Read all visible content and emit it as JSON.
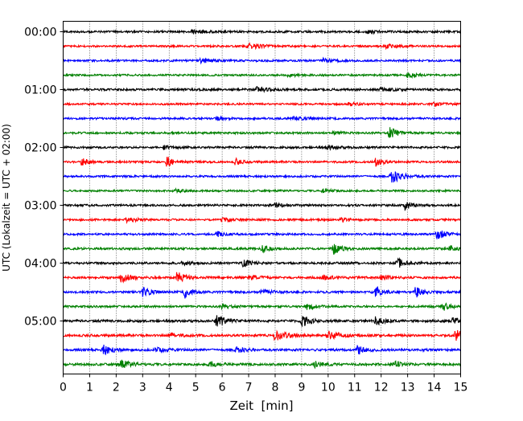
{
  "chart_data": {
    "type": "line",
    "title": "",
    "xlabel": "Zeit  [min]",
    "ylabel": "UTC (Lokalzeit = UTC + 02:00)",
    "xlim": [
      0,
      15
    ],
    "x_ticks": [
      0,
      1,
      2,
      3,
      4,
      5,
      6,
      7,
      8,
      9,
      10,
      11,
      12,
      13,
      14,
      15
    ],
    "x_tick_labels": [
      "0",
      "1",
      "2",
      "3",
      "4",
      "5",
      "6",
      "7",
      "8",
      "9",
      "10",
      "11",
      "12",
      "13",
      "14",
      "15"
    ],
    "trace_interval_minutes": 15,
    "trace_count": 24,
    "y_tick_labels": [
      "00:00",
      "01:00",
      "02:00",
      "03:00",
      "04:00",
      "05:00"
    ],
    "y_tick_trace_index": [
      0,
      4,
      8,
      12,
      16,
      20
    ],
    "grid": "vertical dotted lines at each minute",
    "colors": [
      "#000000",
      "#ff0000",
      "#0000ff",
      "#008000"
    ],
    "traces": [
      {
        "start": "00:00",
        "color": "#000000",
        "noise": 0.32,
        "events": [
          [
            4.9,
            0.6,
            0.4
          ],
          [
            11.5,
            0.5,
            0.3
          ]
        ]
      },
      {
        "start": "00:15",
        "color": "#ff0000",
        "noise": 0.28,
        "events": [
          [
            7.0,
            0.9,
            0.5
          ],
          [
            12.2,
            0.6,
            0.4
          ]
        ]
      },
      {
        "start": "00:30",
        "color": "#0000ff",
        "noise": 0.3,
        "events": [
          [
            5.2,
            0.6,
            0.4
          ],
          [
            9.8,
            0.6,
            0.3
          ]
        ]
      },
      {
        "start": "00:45",
        "color": "#008000",
        "noise": 0.28,
        "events": [
          [
            13.0,
            0.7,
            0.3
          ],
          [
            8.5,
            0.5,
            0.3
          ]
        ]
      },
      {
        "start": "01:00",
        "color": "#000000",
        "noise": 0.33,
        "events": [
          [
            7.3,
            0.7,
            0.4
          ],
          [
            12.0,
            0.6,
            0.4
          ]
        ]
      },
      {
        "start": "01:15",
        "color": "#ff0000",
        "noise": 0.28,
        "events": [
          [
            14.0,
            0.6,
            0.3
          ],
          [
            10.8,
            0.5,
            0.3
          ]
        ]
      },
      {
        "start": "01:30",
        "color": "#0000ff",
        "noise": 0.3,
        "events": [
          [
            5.8,
            0.5,
            0.3
          ],
          [
            8.7,
            0.6,
            0.3
          ]
        ]
      },
      {
        "start": "01:45",
        "color": "#008000",
        "noise": 0.3,
        "events": [
          [
            12.3,
            1.9,
            0.25
          ],
          [
            10.2,
            0.5,
            0.3
          ]
        ]
      },
      {
        "start": "02:00",
        "color": "#000000",
        "noise": 0.32,
        "events": [
          [
            10.0,
            0.6,
            0.3
          ],
          [
            3.8,
            0.5,
            0.3
          ]
        ]
      },
      {
        "start": "02:15",
        "color": "#ff0000",
        "noise": 0.3,
        "events": [
          [
            0.7,
            1.4,
            0.2
          ],
          [
            3.9,
            1.8,
            0.2
          ],
          [
            6.5,
            1.0,
            0.2
          ],
          [
            11.8,
            1.6,
            0.2
          ]
        ]
      },
      {
        "start": "02:30",
        "color": "#0000ff",
        "noise": 0.3,
        "events": [
          [
            12.4,
            1.9,
            0.4
          ]
        ]
      },
      {
        "start": "02:45",
        "color": "#008000",
        "noise": 0.28,
        "events": [
          [
            9.8,
            0.6,
            0.3
          ],
          [
            4.2,
            0.5,
            0.3
          ]
        ]
      },
      {
        "start": "03:00",
        "color": "#000000",
        "noise": 0.32,
        "events": [
          [
            12.9,
            1.2,
            0.25
          ],
          [
            8.0,
            0.6,
            0.3
          ]
        ]
      },
      {
        "start": "03:15",
        "color": "#ff0000",
        "noise": 0.3,
        "events": [
          [
            2.4,
            0.8,
            0.3
          ],
          [
            6.0,
            0.6,
            0.3
          ],
          [
            10.5,
            0.6,
            0.3
          ]
        ]
      },
      {
        "start": "03:30",
        "color": "#0000ff",
        "noise": 0.3,
        "events": [
          [
            14.1,
            2.0,
            0.25
          ],
          [
            5.8,
            0.8,
            0.25
          ]
        ]
      },
      {
        "start": "03:45",
        "color": "#008000",
        "noise": 0.32,
        "events": [
          [
            10.2,
            1.8,
            0.25
          ],
          [
            7.5,
            1.0,
            0.25
          ],
          [
            14.6,
            0.9,
            0.25
          ]
        ]
      },
      {
        "start": "04:00",
        "color": "#000000",
        "noise": 0.33,
        "events": [
          [
            6.8,
            1.2,
            0.25
          ],
          [
            12.6,
            1.6,
            0.25
          ],
          [
            4.5,
            0.7,
            0.3
          ]
        ]
      },
      {
        "start": "04:15",
        "color": "#ff0000",
        "noise": 0.33,
        "events": [
          [
            2.2,
            1.5,
            0.3
          ],
          [
            4.3,
            1.6,
            0.3
          ],
          [
            7.0,
            0.8,
            0.3
          ],
          [
            9.8,
            0.7,
            0.3
          ],
          [
            12.0,
            0.9,
            0.3
          ]
        ]
      },
      {
        "start": "04:30",
        "color": "#0000ff",
        "noise": 0.33,
        "events": [
          [
            3.0,
            1.6,
            0.25
          ],
          [
            4.6,
            1.7,
            0.25
          ],
          [
            11.8,
            2.1,
            0.2
          ],
          [
            13.3,
            1.7,
            0.25
          ],
          [
            7.5,
            0.8,
            0.3
          ]
        ]
      },
      {
        "start": "04:45",
        "color": "#008000",
        "noise": 0.32,
        "events": [
          [
            9.2,
            1.0,
            0.3
          ],
          [
            14.3,
            1.5,
            0.25
          ],
          [
            6.0,
            0.6,
            0.3
          ]
        ]
      },
      {
        "start": "05:00",
        "color": "#000000",
        "noise": 0.35,
        "events": [
          [
            5.8,
            1.9,
            0.3
          ],
          [
            9.0,
            1.8,
            0.3
          ],
          [
            11.8,
            1.3,
            0.25
          ],
          [
            14.7,
            1.0,
            0.25
          ]
        ]
      },
      {
        "start": "05:15",
        "color": "#ff0000",
        "noise": 0.35,
        "events": [
          [
            8.0,
            1.5,
            0.4
          ],
          [
            10.0,
            1.2,
            0.4
          ],
          [
            14.8,
            1.8,
            0.3
          ],
          [
            4.0,
            0.8,
            0.3
          ]
        ]
      },
      {
        "start": "05:30",
        "color": "#0000ff",
        "noise": 0.35,
        "events": [
          [
            1.5,
            1.5,
            0.3
          ],
          [
            11.1,
            1.5,
            0.25
          ],
          [
            6.5,
            0.9,
            0.3
          ],
          [
            3.5,
            0.8,
            0.3
          ]
        ]
      },
      {
        "start": "05:45",
        "color": "#008000",
        "noise": 0.35,
        "events": [
          [
            2.1,
            1.7,
            0.3
          ],
          [
            5.5,
            0.9,
            0.3
          ],
          [
            12.5,
            0.9,
            0.3
          ],
          [
            9.5,
            0.8,
            0.3
          ]
        ]
      }
    ]
  }
}
